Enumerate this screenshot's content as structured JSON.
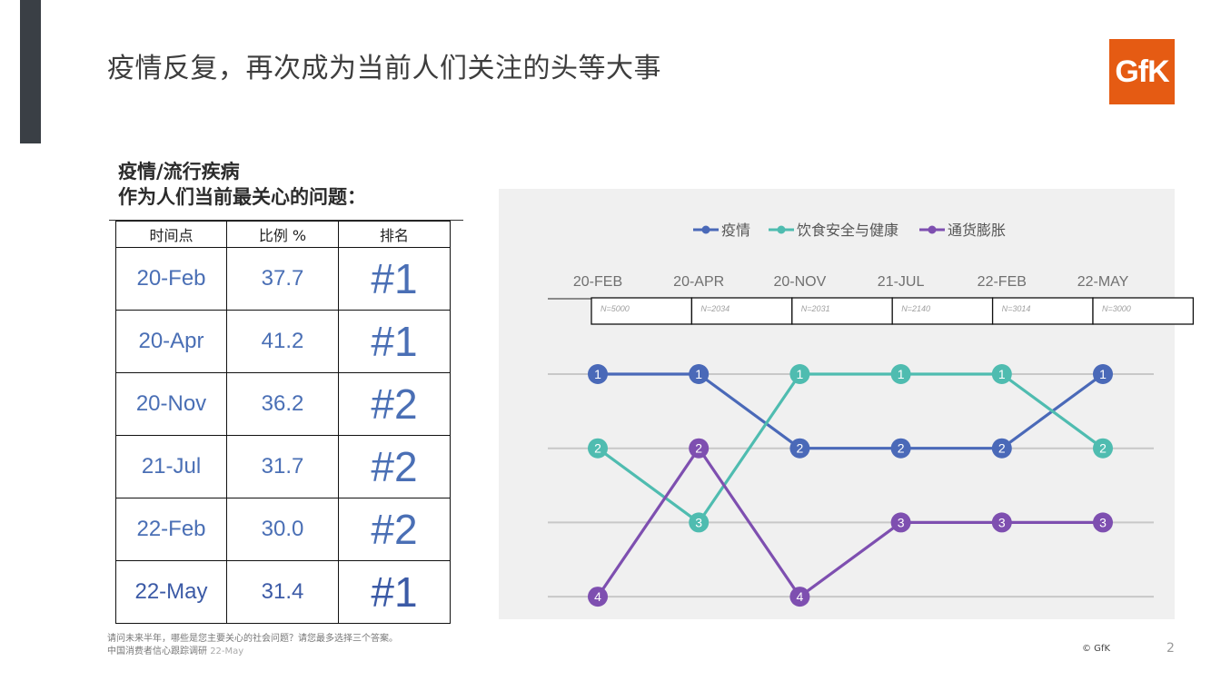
{
  "title": "疫情反复，再次成为当前人们关注的头等大事",
  "logo_text": "GfK",
  "subtitle_line1": "疫情/流行疾病",
  "subtitle_line2": "作为人们当前最关心的问题：",
  "table": {
    "headers": [
      "时间点",
      "比例 %",
      "排名"
    ],
    "rows": [
      [
        "20-Feb",
        "37.7",
        "#1"
      ],
      [
        "20-Apr",
        "41.2",
        "#1"
      ],
      [
        "20-Nov",
        "36.2",
        "#2"
      ],
      [
        "21-Jul",
        "31.7",
        "#2"
      ],
      [
        "22-Feb",
        "30.0",
        "#2"
      ],
      [
        "22-May",
        "31.4",
        "#1"
      ]
    ]
  },
  "footnote_line1": "请问未来半年，哪些是您主要关心的社会问题？请您最多选择三个答案。",
  "footnote_line2": "中国消费者信心跟踪调研",
  "footnote_date": "22-May",
  "copyright": "© GfK",
  "page_number": "2",
  "colors": {
    "epidemic": "#4a69b8",
    "food_safety": "#4fbcb0",
    "inflation": "#7e4fb0"
  },
  "chart_data": {
    "type": "line",
    "x": [
      "20-FEB",
      "20-APR",
      "20-NOV",
      "21-JUL",
      "22-FEB",
      "22-MAY"
    ],
    "sample_sizes": [
      "N=5000",
      "N=2034",
      "N=2031",
      "N=2140",
      "N=3014",
      "N=3000"
    ],
    "y_reversed": true,
    "ylim": [
      1,
      4
    ],
    "legend_position": "top",
    "grid": true,
    "series": [
      {
        "name": "疫情",
        "color": "#4a69b8",
        "values": [
          1,
          1,
          2,
          2,
          2,
          1
        ]
      },
      {
        "name": "饮食安全与健康",
        "color": "#4fbcb0",
        "values": [
          2,
          3,
          1,
          1,
          1,
          2
        ]
      },
      {
        "name": "通货膨胀",
        "color": "#7e4fb0",
        "values": [
          4,
          2,
          4,
          3,
          3,
          3
        ]
      }
    ]
  }
}
